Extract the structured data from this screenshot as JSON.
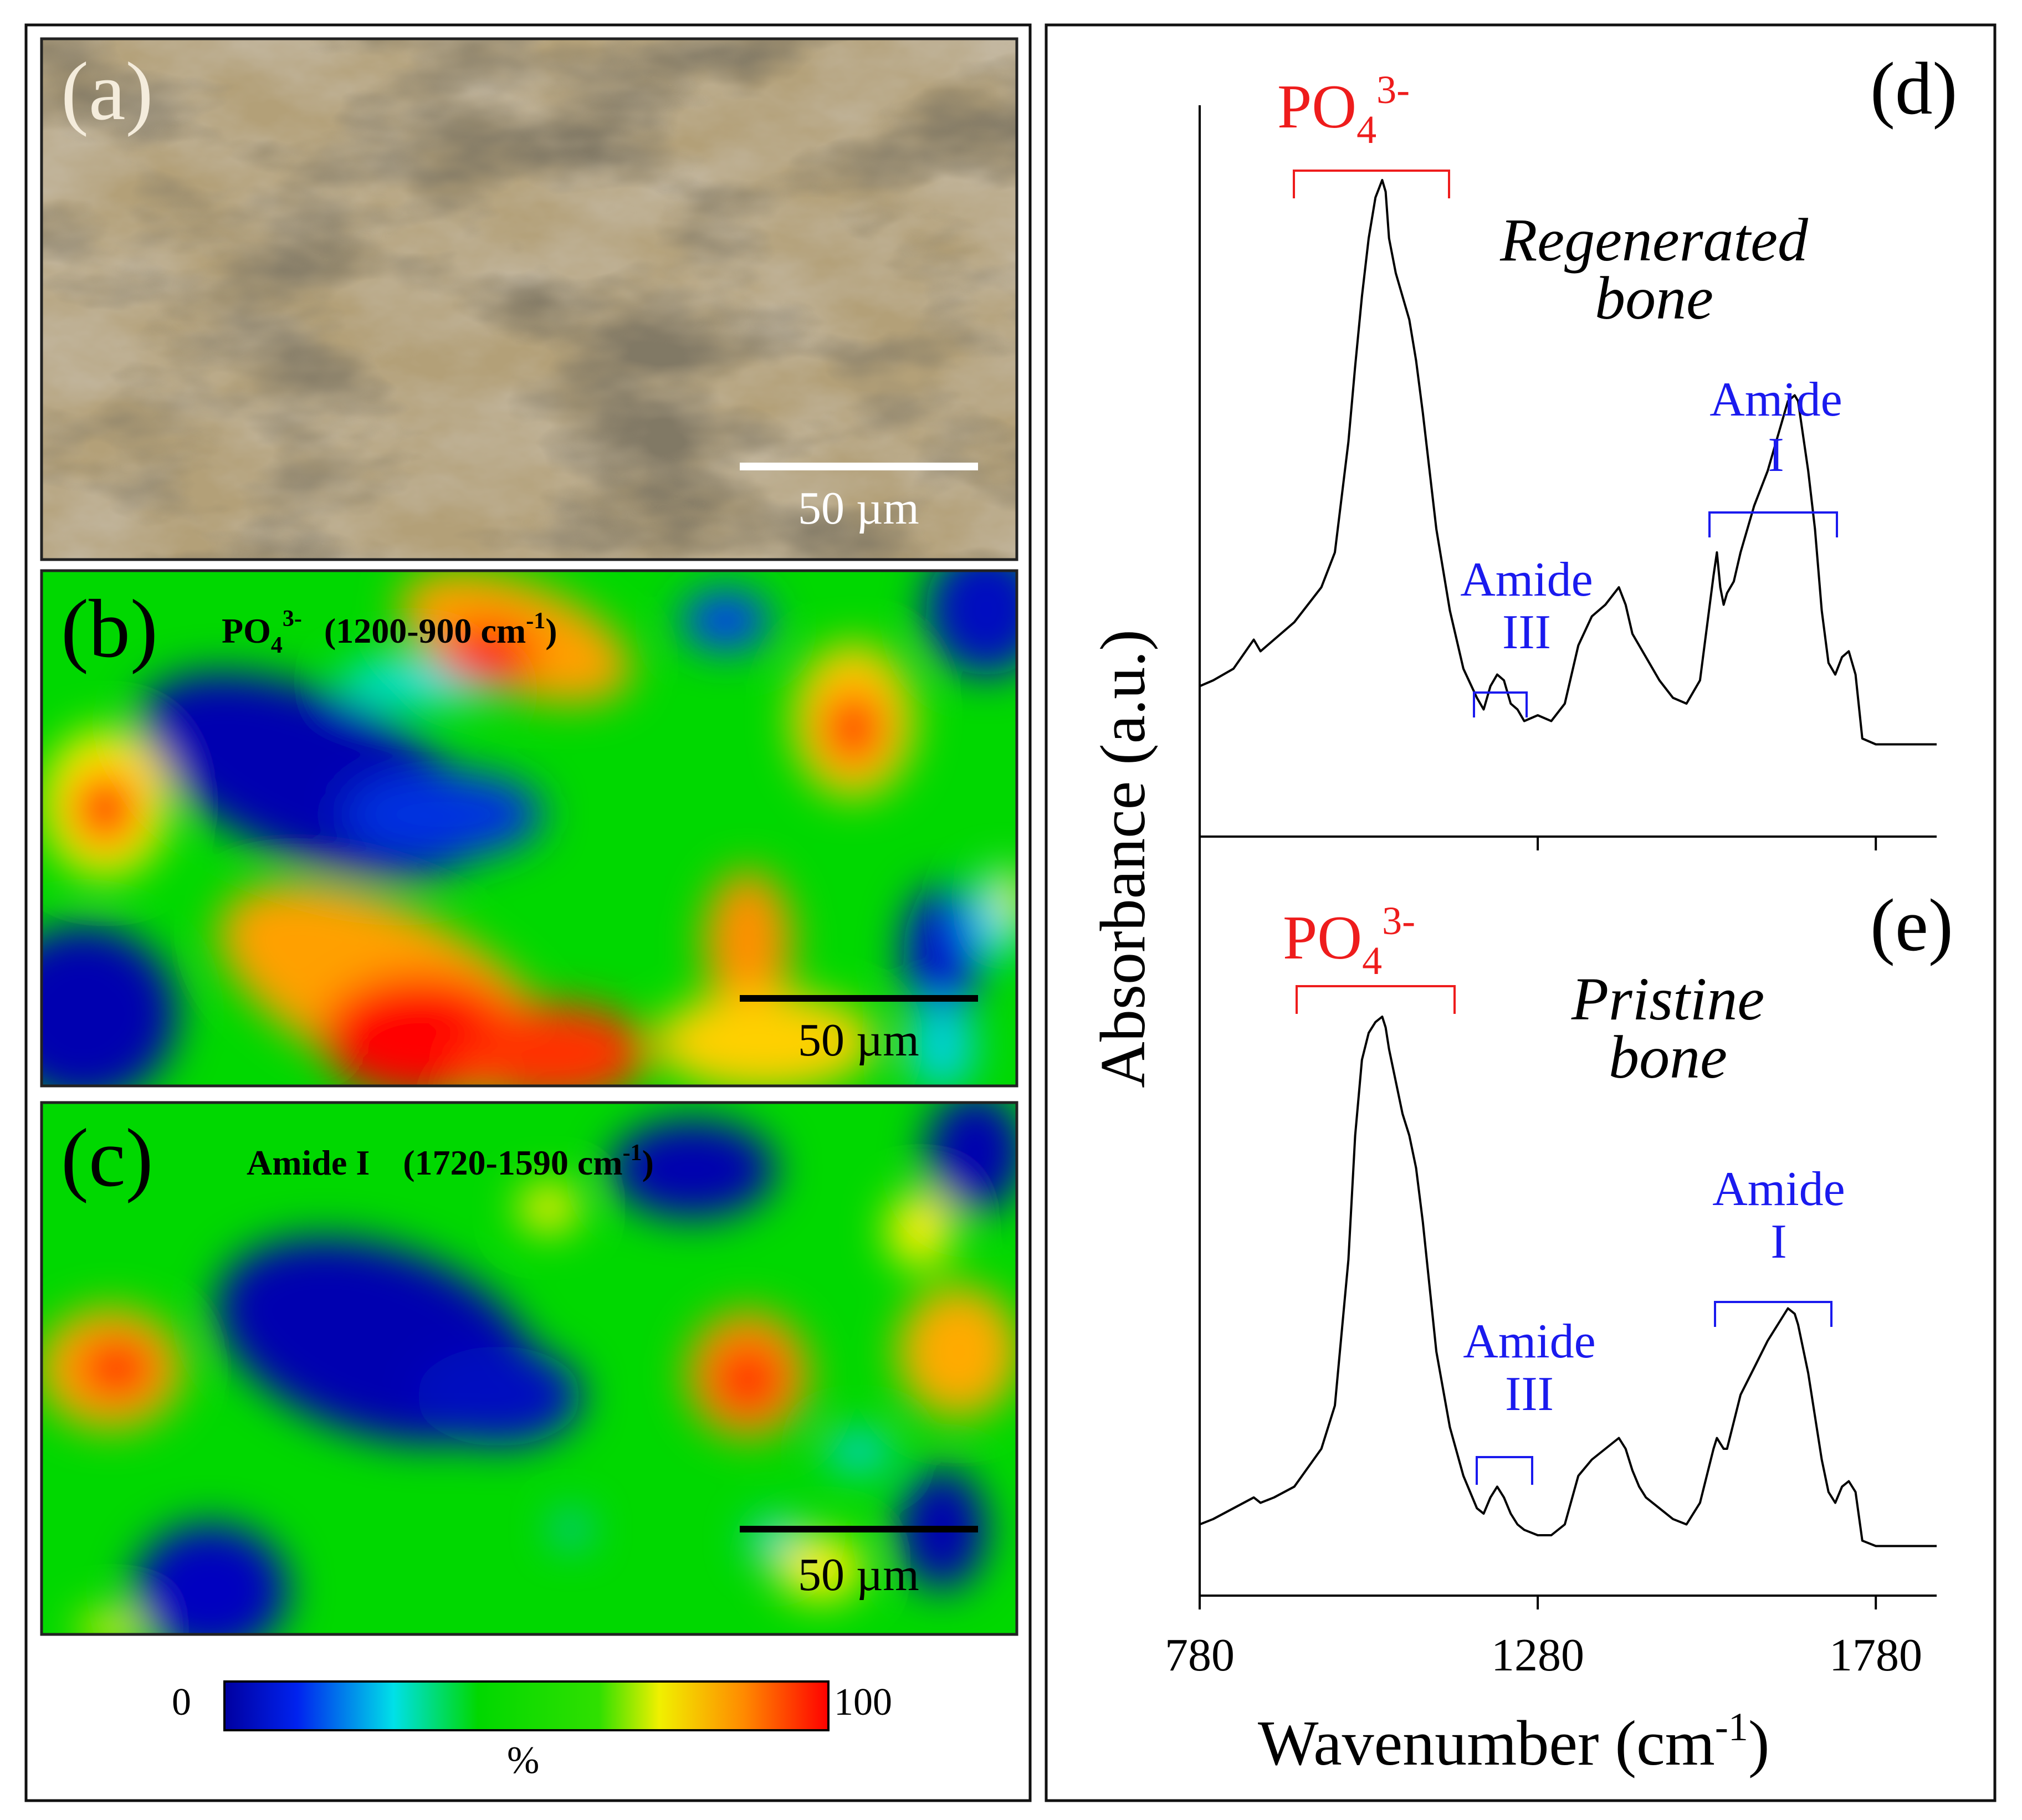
{
  "panels": {
    "a": {
      "label": "(a)",
      "scalebar": "50 µm"
    },
    "b": {
      "label": "(b)",
      "title_ion": "PO",
      "title_sub": "4",
      "title_sup": "3-",
      "title_range": "(1200-900 cm",
      "title_unit_sup": "-1",
      "title_close": ")",
      "scalebar": "50 µm"
    },
    "c": {
      "label": "(c)",
      "title": "Amide I",
      "title_range": "(1720-1590 cm",
      "title_unit_sup": "-1",
      "title_close": ")",
      "scalebar": "50 µm"
    },
    "colorbar": {
      "min_label": "0",
      "max_label": "100",
      "unit": "%"
    },
    "d": {
      "label": "(d)",
      "title_line1": "Regenerated",
      "title_line2": "bone"
    },
    "e": {
      "label": "(e)",
      "title_line1": "Pristine",
      "title_line2": "bone"
    }
  },
  "colors": {
    "phosphate": "#ee1c1c",
    "amide": "#1a1aee",
    "trace": "#000000",
    "colormap": [
      "#0000a0",
      "#0030f0",
      "#00e0e0",
      "#00d800",
      "#20e000",
      "#f0f000",
      "#ff8000",
      "#ff0000"
    ]
  },
  "chart_data": [
    {
      "type": "line",
      "panel": "d",
      "title": "Regenerated bone",
      "xlabel": "Wavenumber (cm-1)",
      "ylabel": "Absorbance (a.u.)",
      "xlim": [
        780,
        1870
      ],
      "ylim": [
        0,
        1
      ],
      "xticks": [
        780,
        1280,
        1780
      ],
      "x": [
        780,
        800,
        830,
        860,
        870,
        890,
        920,
        960,
        980,
        1000,
        1010,
        1020,
        1030,
        1040,
        1050,
        1055,
        1060,
        1070,
        1080,
        1090,
        1100,
        1110,
        1120,
        1130,
        1150,
        1170,
        1190,
        1200,
        1210,
        1220,
        1230,
        1240,
        1250,
        1260,
        1280,
        1300,
        1320,
        1340,
        1360,
        1380,
        1400,
        1410,
        1420,
        1430,
        1440,
        1460,
        1480,
        1500,
        1520,
        1540,
        1545,
        1550,
        1555,
        1560,
        1570,
        1580,
        1600,
        1620,
        1640,
        1650,
        1660,
        1665,
        1670,
        1680,
        1690,
        1700,
        1710,
        1720,
        1730,
        1740,
        1750,
        1760,
        1780,
        1800,
        1830,
        1870
      ],
      "y": [
        0.13,
        0.14,
        0.16,
        0.21,
        0.19,
        0.21,
        0.24,
        0.3,
        0.36,
        0.55,
        0.68,
        0.8,
        0.9,
        0.97,
        1.0,
        0.98,
        0.9,
        0.84,
        0.8,
        0.76,
        0.69,
        0.6,
        0.5,
        0.4,
        0.26,
        0.16,
        0.11,
        0.09,
        0.13,
        0.15,
        0.14,
        0.1,
        0.09,
        0.07,
        0.08,
        0.07,
        0.1,
        0.2,
        0.25,
        0.27,
        0.3,
        0.27,
        0.22,
        0.2,
        0.18,
        0.14,
        0.11,
        0.1,
        0.14,
        0.32,
        0.36,
        0.3,
        0.27,
        0.29,
        0.31,
        0.36,
        0.44,
        0.5,
        0.58,
        0.62,
        0.63,
        0.62,
        0.58,
        0.5,
        0.4,
        0.26,
        0.17,
        0.15,
        0.18,
        0.19,
        0.15,
        0.04,
        0.03,
        0.03,
        0.03,
        0.03
      ],
      "annotations": [
        {
          "text": "PO4(3-)",
          "range": [
            900,
            1150
          ],
          "color": "phosphate"
        },
        {
          "text": "Amide III",
          "range": [
            1200,
            1275
          ],
          "color": "amide"
        },
        {
          "text": "Amide I",
          "range": [
            1590,
            1720
          ],
          "color": "amide"
        }
      ]
    },
    {
      "type": "line",
      "panel": "e",
      "title": "Pristine bone",
      "xlabel": "Wavenumber (cm-1)",
      "ylabel": "Absorbance (a.u.)",
      "xlim": [
        780,
        1870
      ],
      "ylim": [
        0,
        1
      ],
      "xticks": [
        780,
        1280,
        1780
      ],
      "x": [
        780,
        800,
        830,
        860,
        870,
        890,
        920,
        960,
        980,
        1000,
        1010,
        1020,
        1030,
        1040,
        1050,
        1055,
        1060,
        1070,
        1080,
        1090,
        1100,
        1110,
        1120,
        1130,
        1150,
        1170,
        1190,
        1200,
        1210,
        1220,
        1230,
        1240,
        1250,
        1260,
        1280,
        1300,
        1320,
        1340,
        1360,
        1380,
        1400,
        1410,
        1420,
        1430,
        1440,
        1460,
        1480,
        1500,
        1520,
        1540,
        1545,
        1550,
        1555,
        1560,
        1570,
        1580,
        1600,
        1620,
        1640,
        1650,
        1660,
        1665,
        1670,
        1680,
        1690,
        1700,
        1710,
        1720,
        1730,
        1740,
        1750,
        1760,
        1780,
        1800,
        1830,
        1870
      ],
      "y": [
        0.06,
        0.07,
        0.09,
        0.11,
        0.1,
        0.11,
        0.13,
        0.2,
        0.28,
        0.55,
        0.78,
        0.92,
        0.97,
        0.99,
        1.0,
        0.98,
        0.94,
        0.88,
        0.82,
        0.78,
        0.72,
        0.62,
        0.5,
        0.38,
        0.24,
        0.15,
        0.09,
        0.08,
        0.11,
        0.13,
        0.11,
        0.08,
        0.06,
        0.05,
        0.04,
        0.04,
        0.06,
        0.15,
        0.18,
        0.2,
        0.22,
        0.2,
        0.16,
        0.13,
        0.11,
        0.09,
        0.07,
        0.06,
        0.1,
        0.2,
        0.22,
        0.21,
        0.2,
        0.2,
        0.25,
        0.3,
        0.35,
        0.4,
        0.44,
        0.46,
        0.45,
        0.43,
        0.4,
        0.34,
        0.26,
        0.18,
        0.12,
        0.1,
        0.13,
        0.14,
        0.12,
        0.03,
        0.02,
        0.02,
        0.02,
        0.02
      ],
      "annotations": [
        {
          "text": "PO4(3-)",
          "range": [
            900,
            1150
          ],
          "color": "phosphate"
        },
        {
          "text": "Amide III",
          "range": [
            1200,
            1275
          ],
          "color": "amide"
        },
        {
          "text": "Amide I",
          "range": [
            1590,
            1720
          ],
          "color": "amide"
        }
      ]
    }
  ],
  "axes": {
    "ylabel": "Absorbance (a.u.)",
    "xlabel_main": "Wavenumber (cm",
    "xlabel_sup": "-1",
    "xlabel_close": ")",
    "xticks": [
      "780",
      "1280",
      "1780"
    ]
  },
  "annotation_labels": {
    "po4_ion": "PO",
    "po4_sub": "4",
    "po4_sup": "3-",
    "amide_word": "Amide",
    "amide_iii": "III",
    "amide_i": "I"
  }
}
